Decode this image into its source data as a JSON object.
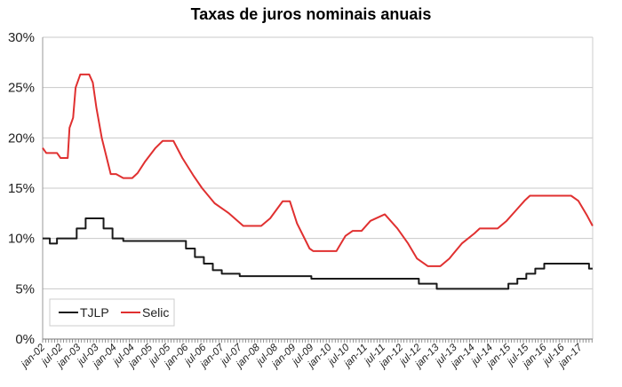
{
  "chart_data": {
    "type": "line",
    "title": "Taxas de juros nominais anuais",
    "xlabel": "",
    "ylabel": "",
    "ylim": [
      0,
      30
    ],
    "xlim": [
      2002.0,
      2017.35
    ],
    "y_ticks": [
      "0%",
      "5%",
      "10%",
      "15%",
      "20%",
      "25%",
      "30%"
    ],
    "x_ticks": [
      "jan-02",
      "jul-02",
      "jan-03",
      "jul-03",
      "jan-04",
      "jul-04",
      "jan-05",
      "jul-05",
      "jan-06",
      "jul-06",
      "jan-07",
      "jul-07",
      "jan-08",
      "jul-08",
      "jan-09",
      "jul-09",
      "jan-10",
      "jul-10",
      "jan-11",
      "jul-11",
      "jan-12",
      "jul-12",
      "jan-13",
      "jul-13",
      "jan-14",
      "jul-14",
      "jan-15",
      "jul-15",
      "jan-16",
      "jul-16",
      "jan-17"
    ],
    "grid": true,
    "legend": "bottom-left",
    "series": [
      {
        "name": "TJLP",
        "color": "#1a1a1a",
        "step": true,
        "points": [
          [
            2002.0,
            10
          ],
          [
            2002.2,
            9.5
          ],
          [
            2002.4,
            10
          ],
          [
            2002.95,
            11
          ],
          [
            2003.2,
            12
          ],
          [
            2003.7,
            11
          ],
          [
            2003.95,
            10
          ],
          [
            2004.25,
            9.75
          ],
          [
            2006.0,
            9
          ],
          [
            2006.25,
            8.15
          ],
          [
            2006.5,
            7.5
          ],
          [
            2006.75,
            6.85
          ],
          [
            2007.0,
            6.5
          ],
          [
            2007.5,
            6.25
          ],
          [
            2009.5,
            6
          ],
          [
            2012.5,
            5.5
          ],
          [
            2013.0,
            5
          ],
          [
            2015.0,
            5.5
          ],
          [
            2015.25,
            6
          ],
          [
            2015.5,
            6.5
          ],
          [
            2015.75,
            7
          ],
          [
            2016.0,
            7.5
          ],
          [
            2017.25,
            7
          ],
          [
            2017.35,
            7
          ]
        ]
      },
      {
        "name": "Selic",
        "color": "#e03030",
        "step": false,
        "points": [
          [
            2002.0,
            19
          ],
          [
            2002.1,
            18.5
          ],
          [
            2002.4,
            18.5
          ],
          [
            2002.5,
            18
          ],
          [
            2002.7,
            18
          ],
          [
            2002.75,
            21
          ],
          [
            2002.85,
            22
          ],
          [
            2002.92,
            25
          ],
          [
            2003.05,
            26.3
          ],
          [
            2003.3,
            26.3
          ],
          [
            2003.4,
            25.5
          ],
          [
            2003.5,
            23
          ],
          [
            2003.65,
            20
          ],
          [
            2003.9,
            16.4
          ],
          [
            2004.05,
            16.4
          ],
          [
            2004.25,
            16
          ],
          [
            2004.5,
            16
          ],
          [
            2004.65,
            16.5
          ],
          [
            2004.85,
            17.6
          ],
          [
            2005.15,
            19
          ],
          [
            2005.35,
            19.7
          ],
          [
            2005.65,
            19.7
          ],
          [
            2005.9,
            18
          ],
          [
            2006.2,
            16.3
          ],
          [
            2006.45,
            15
          ],
          [
            2006.8,
            13.5
          ],
          [
            2007.2,
            12.5
          ],
          [
            2007.6,
            11.25
          ],
          [
            2008.1,
            11.25
          ],
          [
            2008.35,
            12
          ],
          [
            2008.7,
            13.7
          ],
          [
            2008.9,
            13.7
          ],
          [
            2009.1,
            11.5
          ],
          [
            2009.45,
            9
          ],
          [
            2009.55,
            8.75
          ],
          [
            2010.2,
            8.75
          ],
          [
            2010.45,
            10.25
          ],
          [
            2010.65,
            10.75
          ],
          [
            2010.9,
            10.75
          ],
          [
            2011.15,
            11.75
          ],
          [
            2011.55,
            12.4
          ],
          [
            2011.9,
            11
          ],
          [
            2012.2,
            9.5
          ],
          [
            2012.45,
            8
          ],
          [
            2012.75,
            7.25
          ],
          [
            2013.1,
            7.25
          ],
          [
            2013.35,
            8
          ],
          [
            2013.7,
            9.5
          ],
          [
            2014.05,
            10.5
          ],
          [
            2014.2,
            11
          ],
          [
            2014.7,
            11
          ],
          [
            2014.95,
            11.75
          ],
          [
            2015.2,
            12.75
          ],
          [
            2015.45,
            13.75
          ],
          [
            2015.6,
            14.25
          ],
          [
            2016.75,
            14.25
          ],
          [
            2016.95,
            13.75
          ],
          [
            2017.2,
            12.25
          ],
          [
            2017.35,
            11.25
          ]
        ]
      }
    ]
  }
}
